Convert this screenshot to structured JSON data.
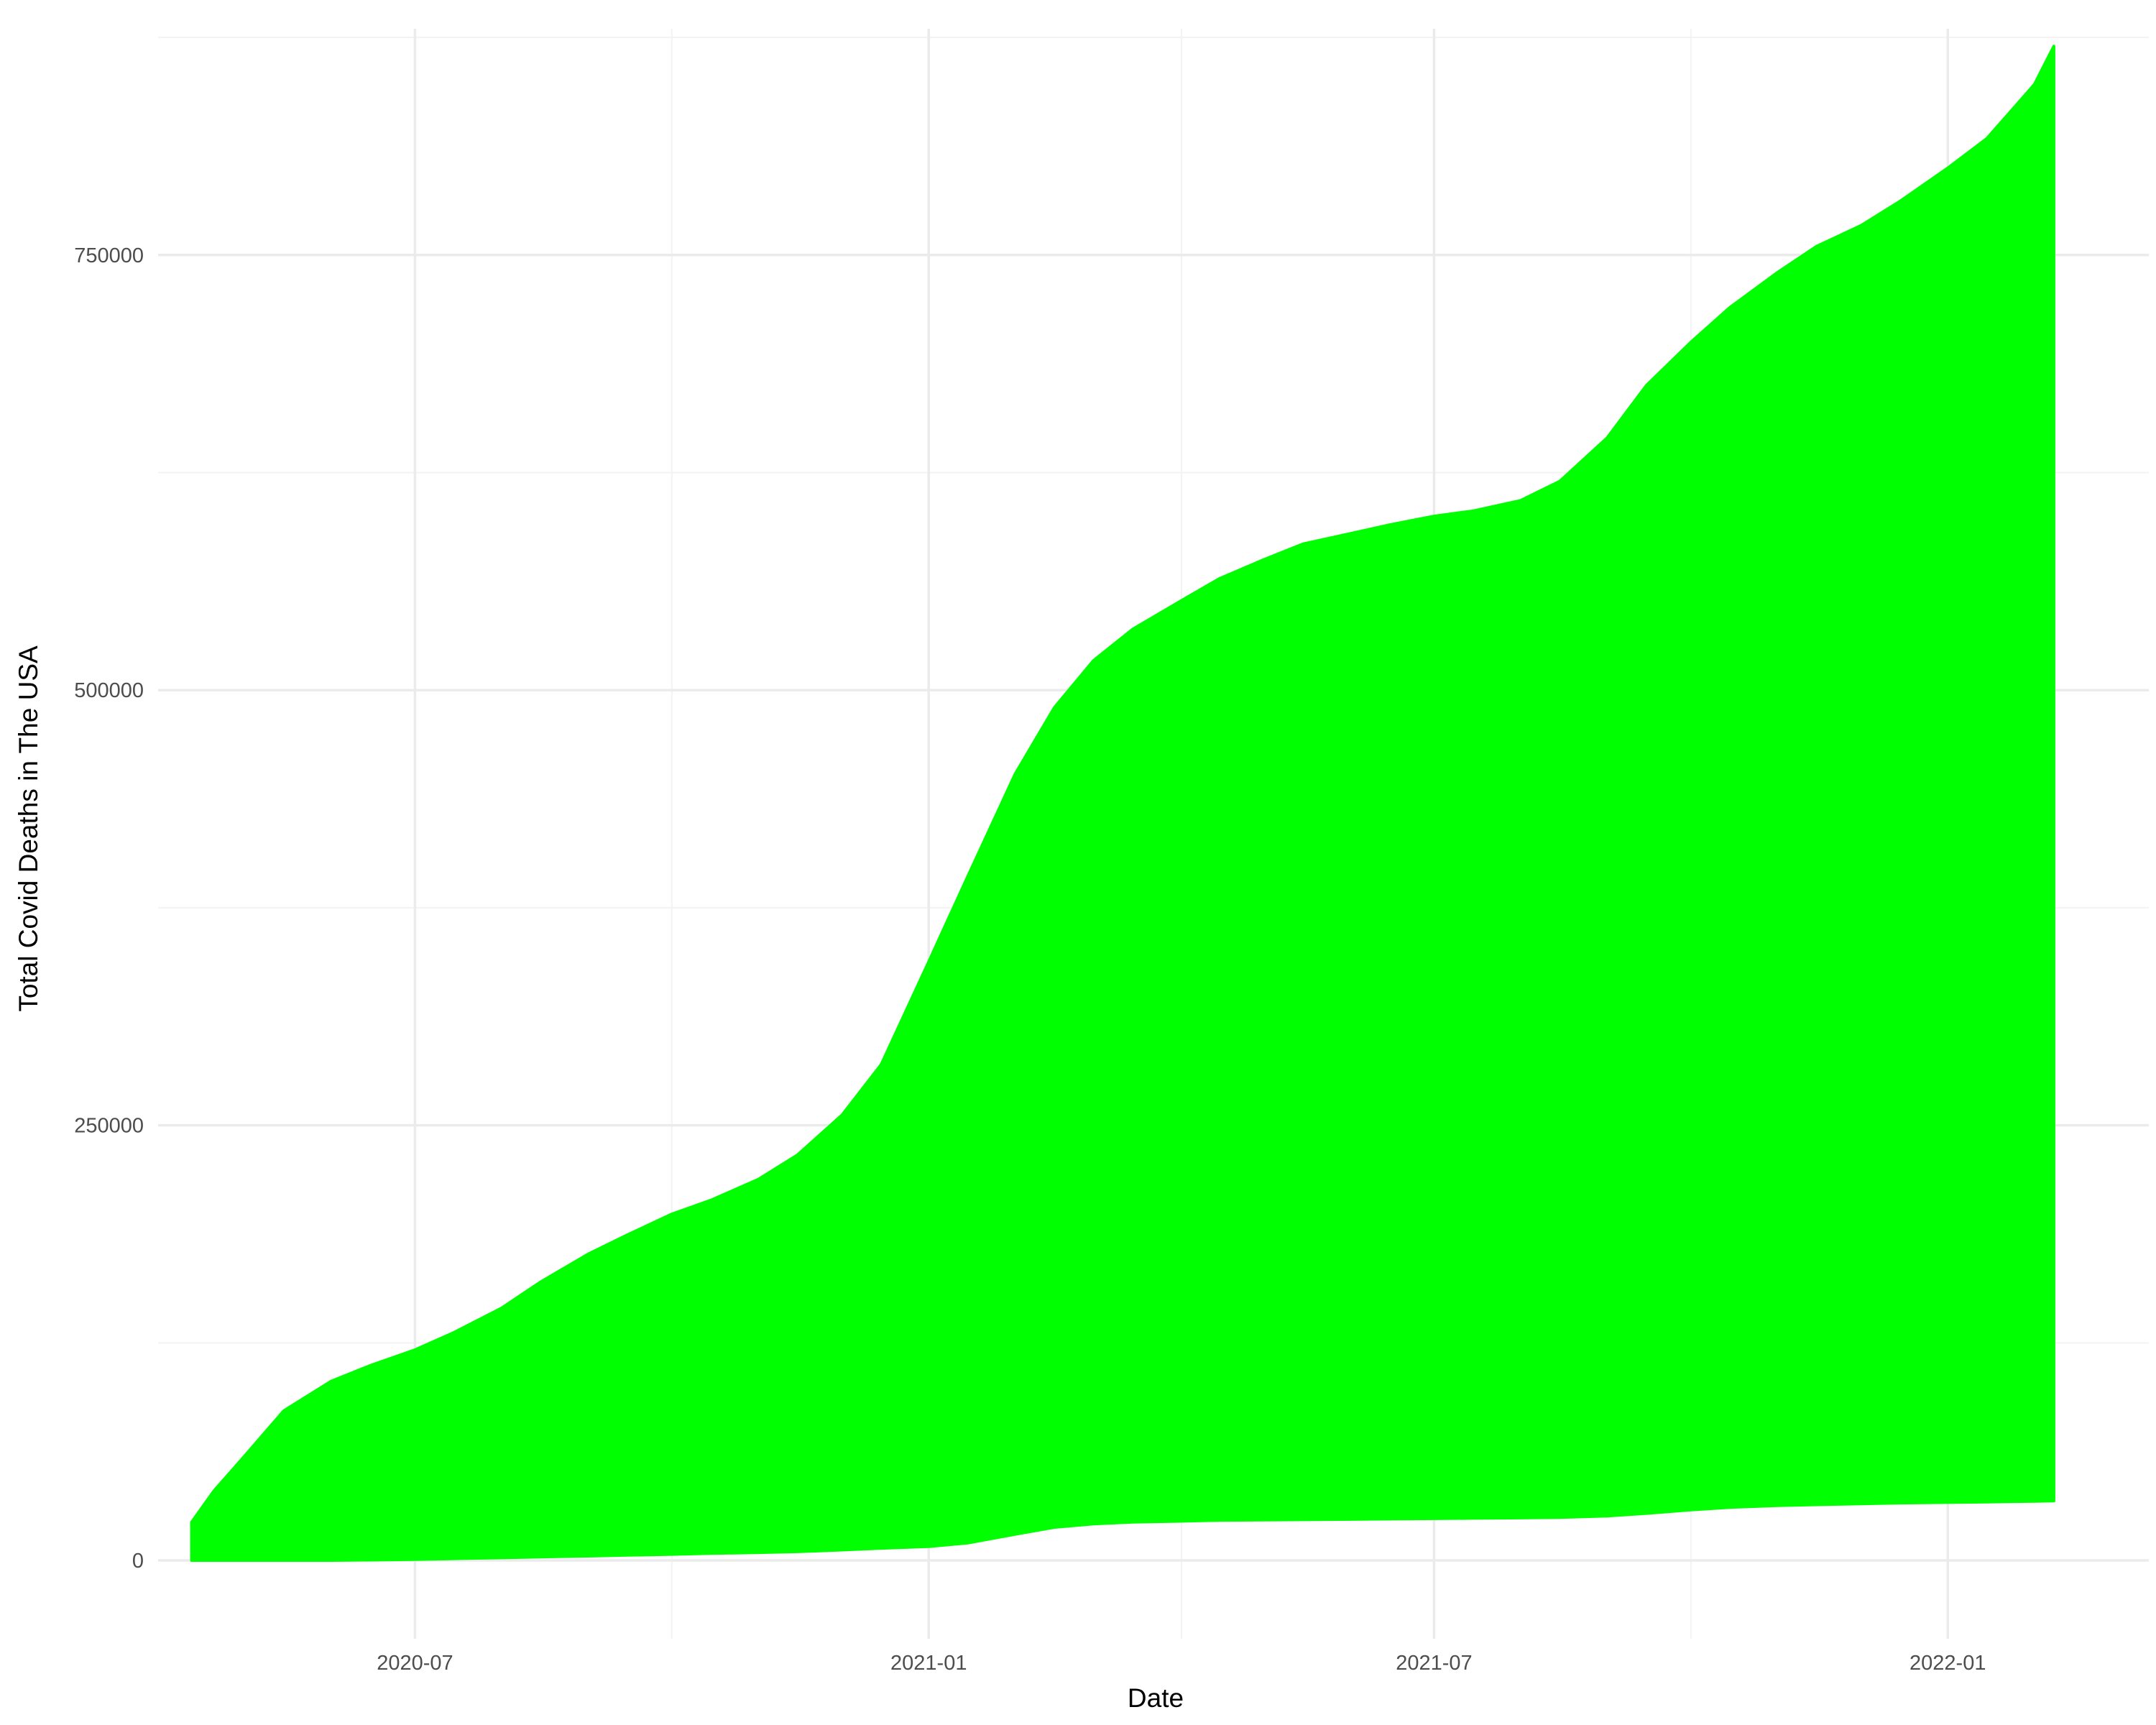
{
  "chart_data": {
    "type": "area",
    "title": "",
    "xlabel": "Date",
    "ylabel": "Total Covid Deaths in The USA",
    "fill_color": "#00ff00",
    "grid": true,
    "legend": "none",
    "xlim": [
      "2020-03-31",
      "2022-03-14"
    ],
    "ylim": [
      -45000,
      880000
    ],
    "x_ticks": [
      "2020-07-01",
      "2021-01-01",
      "2021-07-01",
      "2022-01-01"
    ],
    "x_tick_labels": [
      "2020-07",
      "2021-01",
      "2021-07",
      "2022-01"
    ],
    "y_ticks": [
      0,
      250000,
      500000,
      750000
    ],
    "y_tick_labels": [
      "0",
      "250000",
      "500000",
      "750000"
    ],
    "x": [
      "2020-04-12",
      "2020-04-20",
      "2020-05-01",
      "2020-05-15",
      "2020-06-01",
      "2020-06-15",
      "2020-07-01",
      "2020-07-15",
      "2020-08-01",
      "2020-08-15",
      "2020-09-01",
      "2020-09-15",
      "2020-10-01",
      "2020-10-15",
      "2020-11-01",
      "2020-11-15",
      "2020-12-01",
      "2020-12-15",
      "2021-01-01",
      "2021-01-15",
      "2021-02-01",
      "2021-02-15",
      "2021-03-01",
      "2021-03-15",
      "2021-04-01",
      "2021-04-15",
      "2021-05-01",
      "2021-05-15",
      "2021-06-01",
      "2021-06-15",
      "2021-07-01",
      "2021-07-15",
      "2021-08-01",
      "2021-08-15",
      "2021-09-01",
      "2021-09-15",
      "2021-10-01",
      "2021-10-15",
      "2021-11-01",
      "2021-11-15",
      "2021-12-01",
      "2021-12-15",
      "2022-01-01",
      "2022-01-15",
      "2022-02-01",
      "2022-02-08"
    ],
    "series": [
      {
        "values_upper": [
          22000,
          40000,
          60000,
          86000,
          103000,
          112000,
          121000,
          131000,
          145000,
          160000,
          176000,
          187000,
          199000,
          207000,
          219000,
          233000,
          256000,
          285000,
          344000,
          393000,
          452000,
          490000,
          517000,
          535000,
          551000,
          564000,
          575000,
          584000,
          590000,
          595000,
          600000,
          603000,
          609000,
          620000,
          645000,
          675000,
          700000,
          720000,
          740000,
          755000,
          767000,
          781000,
          800000,
          817000,
          848000,
          870000
        ],
        "values_lower": [
          0,
          0,
          0,
          0,
          0,
          200,
          500,
          1000,
          1500,
          2000,
          2500,
          3000,
          3500,
          4000,
          4500,
          5000,
          6000,
          7000,
          8000,
          10000,
          15000,
          19000,
          21000,
          22000,
          22500,
          23000,
          23200,
          23400,
          23600,
          23800,
          24000,
          24200,
          24400,
          24700,
          25500,
          27000,
          29000,
          30500,
          31500,
          32000,
          32500,
          33000,
          33300,
          33600,
          34000,
          34200
        ]
      }
    ]
  }
}
